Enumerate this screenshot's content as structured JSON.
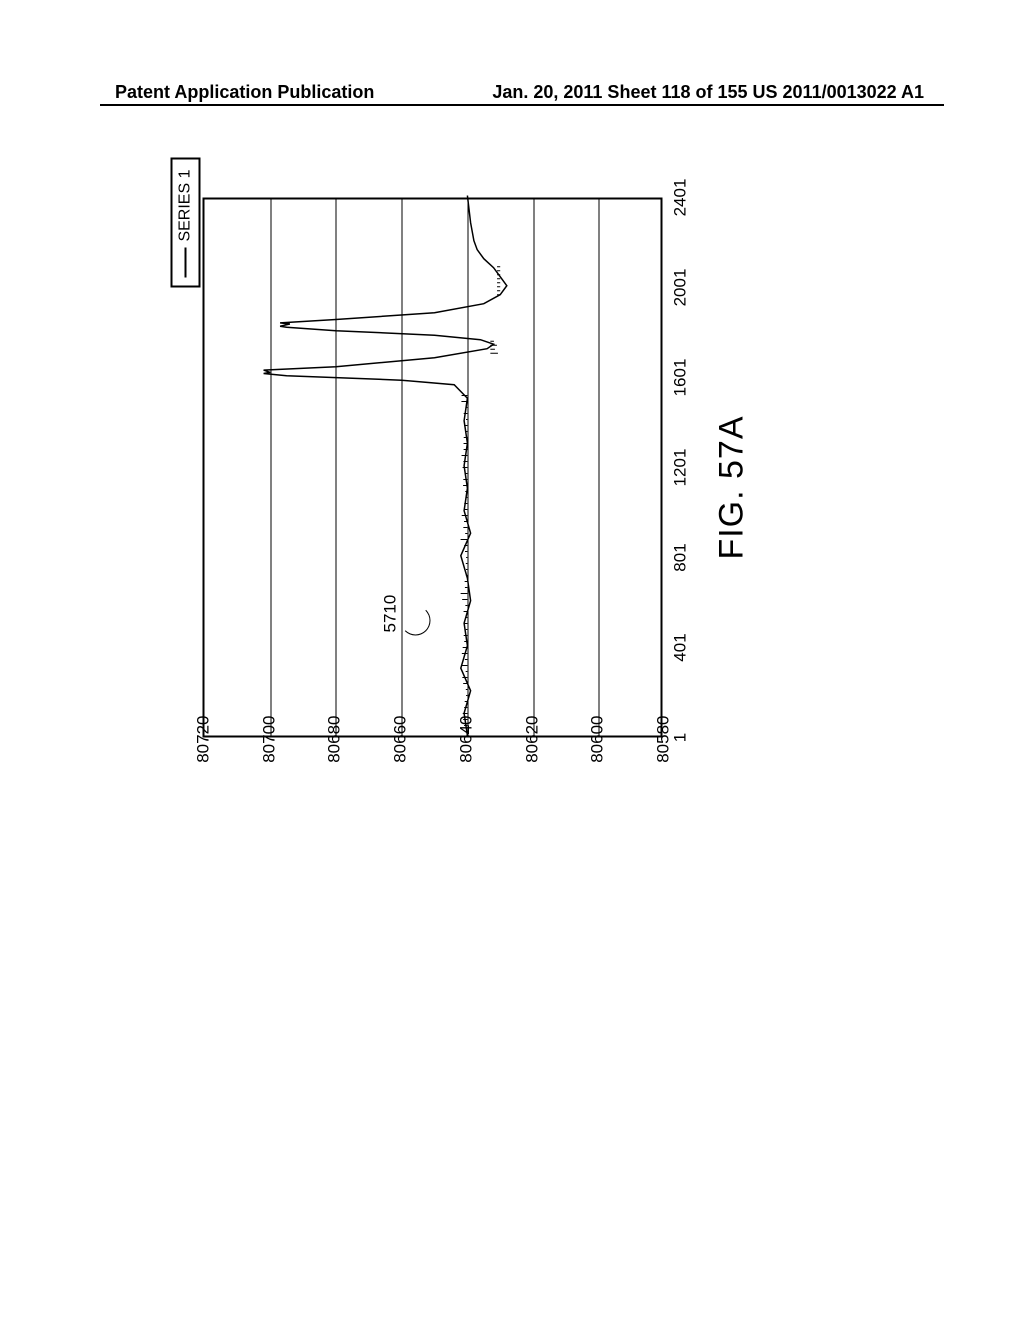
{
  "header": {
    "left": "Patent Application Publication",
    "right": "Jan. 20, 2011  Sheet 118 of 155   US 2011/0013022 A1"
  },
  "figure": {
    "caption": "FIG. 57A",
    "ref_number": "5710",
    "legend_label": "SERIES 1",
    "chart": {
      "type": "line",
      "ylim": [
        80580,
        80720
      ],
      "ytick_step": 20,
      "yticks": [
        80580,
        80600,
        80620,
        80640,
        80660,
        80680,
        80700,
        80720
      ],
      "xlim": [
        1,
        2401
      ],
      "xticks": [
        1,
        401,
        801,
        1201,
        1601,
        2001,
        2401
      ],
      "background_color": "#ffffff",
      "grid_color": "#000000",
      "line_color": "#000000",
      "line_width": 1.5,
      "title_fontsize": 17,
      "series": {
        "name": "SERIES 1",
        "baseline_y": 80640,
        "noise_amplitude": 3,
        "data_points": [
          {
            "x": 1,
            "y": 80640
          },
          {
            "x": 100,
            "y": 80641
          },
          {
            "x": 200,
            "y": 80639
          },
          {
            "x": 300,
            "y": 80642
          },
          {
            "x": 400,
            "y": 80640
          },
          {
            "x": 500,
            "y": 80641
          },
          {
            "x": 600,
            "y": 80639
          },
          {
            "x": 700,
            "y": 80640
          },
          {
            "x": 800,
            "y": 80642
          },
          {
            "x": 900,
            "y": 80639
          },
          {
            "x": 1000,
            "y": 80641
          },
          {
            "x": 1100,
            "y": 80640
          },
          {
            "x": 1200,
            "y": 80641
          },
          {
            "x": 1300,
            "y": 80640
          },
          {
            "x": 1400,
            "y": 80641
          },
          {
            "x": 1500,
            "y": 80640
          },
          {
            "x": 1560,
            "y": 80644
          },
          {
            "x": 1580,
            "y": 80660
          },
          {
            "x": 1600,
            "y": 80695
          },
          {
            "x": 1610,
            "y": 80702
          },
          {
            "x": 1615,
            "y": 80700
          },
          {
            "x": 1625,
            "y": 80702
          },
          {
            "x": 1640,
            "y": 80680
          },
          {
            "x": 1680,
            "y": 80650
          },
          {
            "x": 1720,
            "y": 80634
          },
          {
            "x": 1740,
            "y": 80632
          },
          {
            "x": 1760,
            "y": 80636
          },
          {
            "x": 1780,
            "y": 80650
          },
          {
            "x": 1800,
            "y": 80680
          },
          {
            "x": 1815,
            "y": 80695
          },
          {
            "x": 1820,
            "y": 80697
          },
          {
            "x": 1830,
            "y": 80694
          },
          {
            "x": 1835,
            "y": 80697
          },
          {
            "x": 1850,
            "y": 80680
          },
          {
            "x": 1880,
            "y": 80650
          },
          {
            "x": 1920,
            "y": 80635
          },
          {
            "x": 1960,
            "y": 80630
          },
          {
            "x": 2000,
            "y": 80628
          },
          {
            "x": 2040,
            "y": 80630
          },
          {
            "x": 2080,
            "y": 80632
          },
          {
            "x": 2120,
            "y": 80635
          },
          {
            "x": 2160,
            "y": 80637
          },
          {
            "x": 2200,
            "y": 80638
          },
          {
            "x": 2280,
            "y": 80639
          },
          {
            "x": 2401,
            "y": 80640
          }
        ]
      }
    }
  }
}
